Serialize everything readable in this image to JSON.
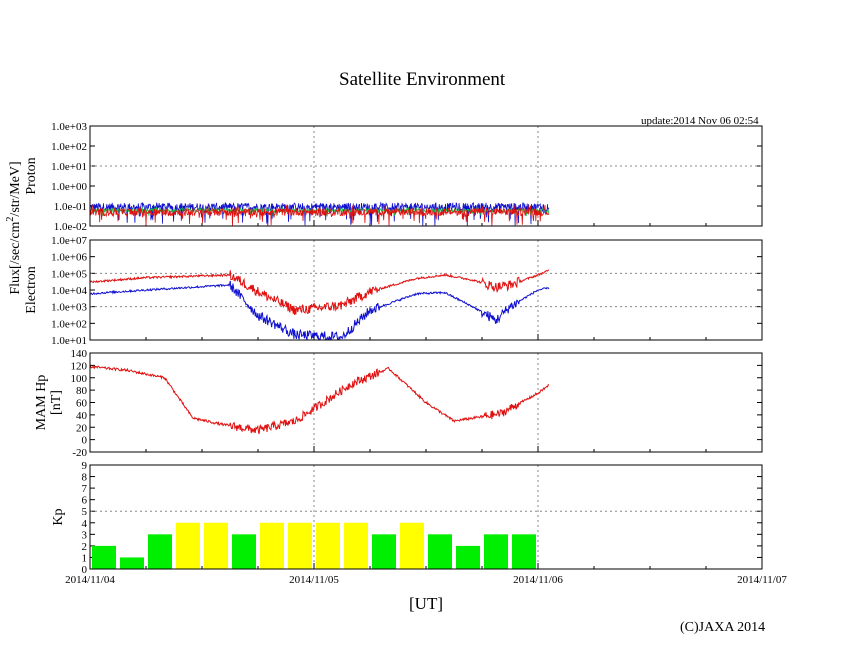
{
  "title": "Satellite Environment",
  "update": "update:2014 Nov 06 02:54",
  "credit": "(C)JAXA 2014",
  "x_axis": {
    "label": "[UT]",
    "range": [
      "2014-11-04T00:00",
      "2014-11-07T00:00"
    ],
    "ticks": [
      "2014/11/04",
      "2014/11/05",
      "2014/11/06",
      "2014/11/07"
    ],
    "grid": "dotted vertical lines at day boundaries"
  },
  "shared_ylabel": "Flux[/sec/cm2/str/MeV]",
  "colors": {
    "red": "#e01010",
    "blue": "#1010d0",
    "green": "#10c040",
    "kp_yellow": "#ffff00",
    "kp_green": "#00ee00",
    "grid": "#888888"
  },
  "chart_data": [
    {
      "type": "line",
      "panel": "proton",
      "ylabel": "Proton",
      "yscale": "log",
      "ylim": [
        0.01,
        1000
      ],
      "yticks": [
        "1.0e-02",
        "1.0e-01",
        "1.0e+00",
        "1.0e+01",
        "1.0e+02",
        "1.0e+03"
      ],
      "data_end": "2014-11-06T01:10",
      "series": [
        {
          "color": "blue",
          "level": 0.09,
          "noise_min": 0.01,
          "noise_max": 0.15
        },
        {
          "color": "green",
          "level": 0.06,
          "noise_min": 0.03,
          "noise_max": 0.09
        },
        {
          "color": "red",
          "level": 0.05,
          "noise_min": 0.01,
          "noise_max": 0.12
        }
      ]
    },
    {
      "type": "line",
      "panel": "electron",
      "ylabel": "Electron",
      "yscale": "log",
      "ylim": [
        10,
        10000000
      ],
      "yticks": [
        "1.0e+01",
        "1.0e+02",
        "1.0e+03",
        "1.0e+04",
        "1.0e+05",
        "1.0e+06",
        "1.0e+07"
      ],
      "series": [
        {
          "color": "red",
          "x": [
            "2014-11-04T00:00",
            "2014-11-04T06:00",
            "2014-11-04T15:00",
            "2014-11-04T18:00",
            "2014-11-04T22:00",
            "2014-11-05T03:00",
            "2014-11-05T06:00",
            "2014-11-05T11:00",
            "2014-11-05T14:00",
            "2014-11-05T17:00",
            "2014-11-05T19:30",
            "2014-11-05T21:00",
            "2014-11-06T00:00",
            "2014-11-06T01:10"
          ],
          "y": [
            30000,
            55000,
            80000,
            8000,
            600,
            1200,
            8000,
            50000,
            80000,
            40000,
            15000,
            20000,
            80000,
            150000
          ]
        },
        {
          "color": "blue",
          "x": [
            "2014-11-04T00:00",
            "2014-11-04T06:00",
            "2014-11-04T15:00",
            "2014-11-04T18:00",
            "2014-11-04T22:00",
            "2014-11-05T03:00",
            "2014-11-05T06:00",
            "2014-11-05T11:00",
            "2014-11-05T14:00",
            "2014-11-05T17:00",
            "2014-11-05T19:30",
            "2014-11-05T21:00",
            "2014-11-06T00:00",
            "2014-11-06T01:10"
          ],
          "y": [
            6000,
            10000,
            20000,
            300,
            20,
            15,
            600,
            6000,
            7000,
            1000,
            150,
            1000,
            10000,
            13000
          ]
        }
      ]
    },
    {
      "type": "line",
      "panel": "mam_hp",
      "ylabel": "MAM Hp [nT]",
      "ylim": [
        -20,
        140
      ],
      "yticks": [
        -20,
        0,
        20,
        40,
        60,
        80,
        100,
        120,
        140
      ],
      "series": [
        {
          "color": "red",
          "x": [
            "2014-11-04T00:00",
            "2014-11-04T04:00",
            "2014-11-04T08:00",
            "2014-11-04T11:00",
            "2014-11-04T14:00",
            "2014-11-04T18:00",
            "2014-11-04T22:00",
            "2014-11-05T04:00",
            "2014-11-05T08:00",
            "2014-11-05T12:00",
            "2014-11-05T15:00",
            "2014-11-05T20:00",
            "2014-11-06T00:00",
            "2014-11-06T01:10"
          ],
          "y": [
            118,
            112,
            100,
            35,
            25,
            15,
            30,
            90,
            115,
            60,
            30,
            42,
            75,
            88
          ]
        }
      ]
    },
    {
      "type": "bar",
      "panel": "kp",
      "ylabel": "Kp",
      "ylim": [
        0,
        9
      ],
      "yticks": [
        0,
        1,
        2,
        3,
        4,
        5,
        6,
        7,
        8,
        9
      ],
      "threshold": 5,
      "bar_interval_hours": 3,
      "categories": [
        "11/04 00",
        "11/04 03",
        "11/04 06",
        "11/04 09",
        "11/04 12",
        "11/04 15",
        "11/04 18",
        "11/04 21",
        "11/05 00",
        "11/05 03",
        "11/05 06",
        "11/05 09",
        "11/05 12",
        "11/05 15",
        "11/05 18",
        "11/05 21"
      ],
      "values": [
        2,
        1,
        3,
        4,
        4,
        3,
        4,
        4,
        4,
        4,
        3,
        4,
        3,
        2,
        3,
        3
      ],
      "bar_colors": [
        "green",
        "green",
        "green",
        "yellow",
        "yellow",
        "green",
        "yellow",
        "yellow",
        "yellow",
        "yellow",
        "green",
        "yellow",
        "green",
        "green",
        "green",
        "green"
      ]
    }
  ]
}
